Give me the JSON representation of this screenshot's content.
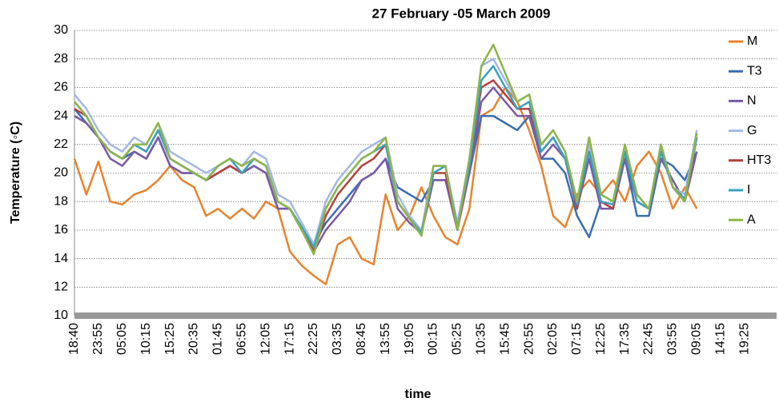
{
  "chart_data": {
    "type": "line",
    "title": "27 February -05 March 2009",
    "y_label": "Temperature (◦C)",
    "x_label": "time",
    "categories": [
      "18:40",
      null,
      "23:55",
      null,
      "05:05",
      null,
      "10:15",
      null,
      "15:25",
      null,
      "20:35",
      null,
      "01:45",
      null,
      "06:55",
      null,
      "12:05",
      null,
      "17:15",
      null,
      "22:25",
      null,
      "03:35",
      null,
      "08:45",
      null,
      "13:55",
      null,
      "19:05",
      null,
      "00:15",
      null,
      "05:25",
      null,
      "10:35",
      null,
      "15:45",
      null,
      "20:55",
      null,
      "02:05",
      null,
      "07:15",
      null,
      "12:25",
      null,
      "17:35",
      null,
      "22:45",
      null,
      "03:55",
      null,
      "09:05",
      null,
      "14:15",
      null,
      "19:25",
      null
    ],
    "ylim": [
      10,
      30
    ],
    "yticks": [
      10,
      12,
      14,
      16,
      18,
      20,
      22,
      24,
      26,
      28,
      30
    ],
    "grid": true,
    "legend": "right",
    "series": [
      {
        "name": "M",
        "color": "#e8832e",
        "values": [
          21,
          18.5,
          20.8,
          18,
          17.8,
          18.5,
          18.8,
          19.5,
          20.5,
          19.5,
          19,
          17,
          17.5,
          16.8,
          17.5,
          16.8,
          18,
          17.5,
          14.5,
          13.5,
          12.8,
          12.2,
          15,
          15.5,
          14,
          13.6,
          18.5,
          16,
          17,
          19,
          17,
          15.5,
          15,
          17.5,
          24,
          24.5,
          26,
          25,
          23,
          20.5,
          17,
          16.2,
          18.5,
          19.5,
          18.5,
          19.5,
          18,
          20.5,
          21.5,
          20,
          17.5,
          19,
          17.5,
          null,
          null,
          null,
          null,
          null
        ]
      },
      {
        "name": "T3",
        "color": "#3a6db3",
        "values": [
          24.5,
          23.5,
          22.5,
          21.5,
          21,
          21.5,
          21,
          22.5,
          20.5,
          20,
          20,
          19.5,
          20,
          20.5,
          20,
          20.5,
          20,
          17.5,
          17.5,
          16,
          15,
          16.5,
          17.5,
          18.5,
          19.5,
          20,
          21,
          19,
          18.5,
          18,
          19.5,
          19.5,
          16.5,
          20,
          24,
          24,
          23.5,
          23,
          24,
          21,
          21,
          20,
          17,
          15.5,
          18,
          17.5,
          21,
          17,
          17,
          21,
          20.5,
          19.5,
          21.5,
          null,
          null,
          null,
          null,
          null
        ]
      },
      {
        "name": "N",
        "color": "#7a5aa6",
        "values": [
          24,
          23.5,
          22.5,
          21,
          20.5,
          21.5,
          21,
          22.5,
          20.5,
          20,
          20,
          19.5,
          20,
          20.5,
          20,
          20.5,
          20,
          17.5,
          17.5,
          16,
          14.5,
          16,
          17,
          18,
          19.5,
          20,
          21,
          17.5,
          16.5,
          15.8,
          19.5,
          19.5,
          16,
          20,
          25,
          26,
          25,
          24,
          24,
          21,
          22,
          21,
          17.5,
          21,
          17.5,
          17.5,
          21,
          18,
          17.5,
          21,
          19.5,
          18,
          21.5,
          null,
          null,
          null,
          null,
          null
        ]
      },
      {
        "name": "G",
        "color": "#a3b8e3",
        "values": [
          25.5,
          24.5,
          23,
          22,
          21.5,
          22.5,
          22,
          23.5,
          21.5,
          21,
          20.5,
          20,
          20.5,
          21,
          20.5,
          21.5,
          21,
          18.5,
          18,
          16.5,
          15,
          18,
          19.5,
          20.5,
          21.5,
          22,
          22.5,
          18.5,
          17,
          16,
          20.5,
          20.5,
          16.5,
          21,
          27.5,
          28,
          26.5,
          25,
          25.5,
          22,
          23,
          21.5,
          18,
          22,
          18.5,
          18,
          22,
          18.5,
          17.5,
          22,
          19,
          18.5,
          23,
          null,
          null,
          null,
          null,
          null
        ]
      },
      {
        "name": "HT3",
        "color": "#b5413d",
        "values": [
          24.5,
          24,
          22.5,
          21.5,
          21,
          22,
          21.5,
          23,
          21,
          20.5,
          20,
          19.5,
          20,
          20.5,
          20,
          21,
          20.5,
          18,
          17.5,
          16.2,
          14.5,
          17,
          18.5,
          19.5,
          20.5,
          21,
          22,
          18,
          16.8,
          15.8,
          20,
          20,
          16,
          20.5,
          26,
          26.5,
          25.5,
          24.5,
          24.5,
          21.5,
          22.5,
          21,
          17.5,
          21.5,
          18,
          17.5,
          21.5,
          18,
          17.5,
          21.5,
          19,
          18,
          22.5,
          null,
          null,
          null,
          null,
          null
        ]
      },
      {
        "name": "I",
        "color": "#3aa1c0",
        "values": [
          25,
          24,
          22.5,
          21.5,
          21,
          22,
          21.5,
          23,
          21,
          20.5,
          20,
          19.5,
          20.5,
          21,
          20,
          21,
          20.5,
          18,
          17.5,
          16.2,
          14.8,
          17.5,
          19,
          20,
          21,
          21.5,
          22,
          18,
          16.8,
          15.8,
          20,
          20.5,
          16.2,
          20.5,
          26.5,
          27.5,
          26,
          24.5,
          25,
          21.5,
          22.5,
          21,
          17.8,
          21.5,
          18,
          17.8,
          21.5,
          18,
          17.5,
          21.5,
          19,
          18.2,
          22.5,
          null,
          null,
          null,
          null,
          null
        ]
      },
      {
        "name": "A",
        "color": "#8db54a",
        "values": [
          25,
          24,
          22.5,
          21.5,
          21,
          22,
          22,
          23.5,
          21,
          20.5,
          20,
          19.5,
          20.5,
          21,
          20.5,
          21,
          20.5,
          18,
          17.5,
          16,
          14.3,
          17.5,
          19,
          20,
          21,
          21.5,
          22.5,
          18,
          16.8,
          15.6,
          20.5,
          20.5,
          16,
          21,
          27.5,
          29,
          27,
          25,
          25.5,
          22,
          23,
          21.5,
          18,
          22.5,
          18.5,
          18,
          22,
          18.5,
          17.5,
          22,
          19,
          18,
          22.8,
          null,
          null,
          null,
          null,
          null
        ]
      }
    ]
  }
}
